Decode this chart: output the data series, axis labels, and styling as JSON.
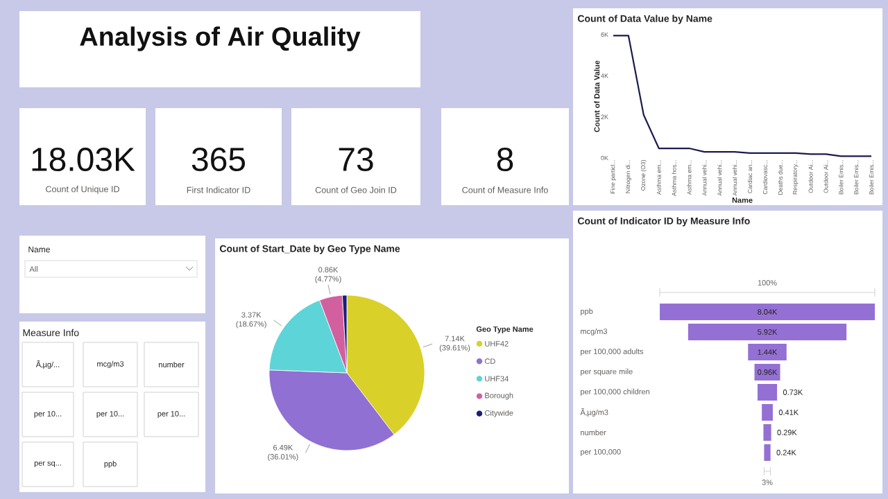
{
  "chart_data": [
    {
      "type": "other",
      "title": "Analysis of Air Quality"
    },
    {
      "type": "line",
      "title": "Count of Data Value by Name",
      "xlabel": "Name",
      "ylabel": "Count of Data Value",
      "color": "#1c1a4f",
      "categories": [
        "Fine particl...",
        "Nitrogen di...",
        "Ozone (O3)",
        "Asthma em...",
        "Asthma hos...",
        "Asthma em...",
        "Annual vehi...",
        "Annual vehi...",
        "Annual vehi...",
        "Cardiac an...",
        "Cardiovasc...",
        "Deaths due...",
        "Respiratory...",
        "Outdoor Ai...",
        "Outdoor Ai...",
        "Boiler Emis...",
        "Boiler Emis...",
        "Boiler Emis..."
      ],
      "values": [
        5950,
        5950,
        2100,
        470,
        470,
        470,
        300,
        300,
        300,
        240,
        240,
        240,
        240,
        190,
        190,
        90,
        90,
        90
      ],
      "ylim": [
        0,
        6000
      ],
      "yticks": [
        {
          "value": 0,
          "label": "0K"
        },
        {
          "value": 2000,
          "label": "2K"
        },
        {
          "value": 4000,
          "label": "4K"
        },
        {
          "value": 6000,
          "label": "6K"
        }
      ]
    },
    {
      "type": "other",
      "annotations": [
        "18.03K",
        "Count of Unique ID",
        "365",
        "First Indicator ID",
        "73",
        "Count of Geo Join ID",
        "8",
        "Count of Measure Info"
      ]
    },
    {
      "type": "other",
      "title": "Name",
      "annotations": [
        "All"
      ]
    },
    {
      "type": "other",
      "title": "Measure Info",
      "annotations": [
        "Ã‚µg/...",
        "mcg/m3",
        "number",
        "per 10...",
        "per 10...",
        "per 10...",
        "per sq...",
        "ppb"
      ]
    },
    {
      "type": "pie",
      "title": "Count of Start_Date by Geo Type Name",
      "legend": "right",
      "legend_title": "Geo Type Name",
      "categories": [
        "UHF42",
        "CD",
        "UHF34",
        "Borough",
        "Citywide"
      ],
      "values": [
        7140,
        6490,
        3370,
        860,
        170
      ],
      "colors": [
        "#d9d02a",
        "#9070d2",
        "#5dd4d8",
        "#d2609f",
        "#1b1f78"
      ],
      "value_labels": [
        "7.14K (39.61%)",
        "6.49K (36.01%)",
        "3.37K (18.67%)",
        "0.86K (4.77%)",
        null
      ]
    },
    {
      "type": "other",
      "title": "Count of Indicator ID by Measure Info",
      "categories": [
        "ppb",
        "mcg/m3",
        "per 100,000 adults",
        "per square mile",
        "per 100,000 children",
        "Ã‚µg/m3",
        "number",
        "per 100,000"
      ],
      "values": [
        8040,
        5920,
        1440,
        960,
        730,
        410,
        290,
        240
      ],
      "value_labels": [
        "8.04K",
        "5.92K",
        "1.44K",
        "0.96K",
        "0.73K",
        "0.41K",
        "0.29K",
        "0.24K"
      ],
      "annotations": [
        "100%",
        "3%"
      ]
    }
  ]
}
